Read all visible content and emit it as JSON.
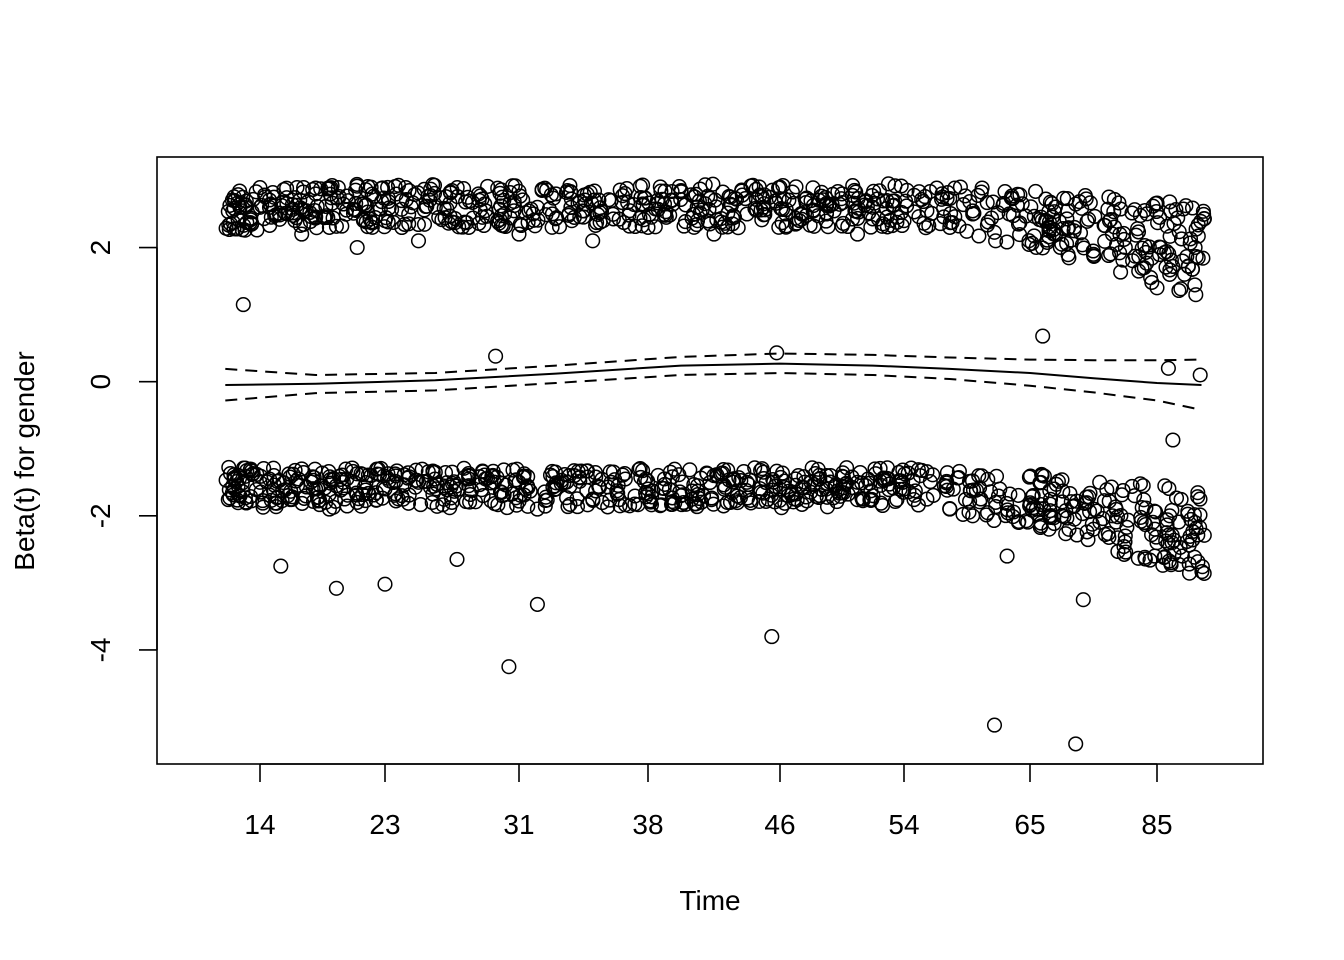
{
  "chart_data": {
    "type": "scatter",
    "title": "",
    "xlabel": "Time",
    "ylabel": "Beta(t) for gender",
    "x_scale": "transformed (tick labels show quantiles of time)",
    "x_ticks": [
      "14",
      "23",
      "31",
      "38",
      "46",
      "54",
      "65",
      "85"
    ],
    "y_ticks": [
      -4,
      -2,
      0,
      2
    ],
    "ylim": [
      -5.7,
      3.35
    ],
    "grid": false,
    "legend": "none",
    "series": [
      {
        "kind": "points",
        "marker": "open circle",
        "description_of_values": "scaled Schoenfeld residuals in two bands",
        "upper_band": [
          [
            14,
            2.6
          ],
          [
            15,
            2.75
          ],
          [
            16,
            2.5
          ],
          [
            17,
            2.2
          ],
          [
            18,
            2.8
          ],
          [
            19,
            2.3
          ],
          [
            20,
            2.65
          ],
          [
            21,
            2.0
          ],
          [
            22,
            2.9
          ],
          [
            23,
            2.4
          ],
          [
            24,
            2.7
          ],
          [
            25,
            2.1
          ],
          [
            26,
            2.6
          ],
          [
            27,
            2.85
          ],
          [
            28,
            2.3
          ],
          [
            29,
            2.55
          ],
          [
            30,
            2.75
          ],
          [
            31,
            2.2
          ],
          [
            32,
            2.6
          ],
          [
            33,
            2.8
          ],
          [
            34,
            2.45
          ],
          [
            35,
            2.1
          ],
          [
            36,
            2.7
          ],
          [
            37,
            2.55
          ],
          [
            38,
            2.3
          ],
          [
            39,
            2.65
          ],
          [
            40,
            2.85
          ],
          [
            41,
            2.4
          ],
          [
            42,
            2.2
          ],
          [
            43,
            2.75
          ],
          [
            44,
            2.5
          ],
          [
            45,
            2.6
          ],
          [
            46,
            2.9
          ],
          [
            47,
            2.35
          ],
          [
            48,
            2.7
          ],
          [
            49,
            2.5
          ],
          [
            50,
            2.8
          ],
          [
            51,
            2.2
          ],
          [
            52,
            2.6
          ],
          [
            53,
            2.95
          ],
          [
            54,
            2.4
          ],
          [
            56,
            2.55
          ],
          [
            58,
            2.3
          ],
          [
            60,
            2.5
          ],
          [
            62,
            2.1
          ],
          [
            64,
            2.35
          ],
          [
            66,
            2.0
          ],
          [
            68,
            2.25
          ],
          [
            70,
            2.05
          ],
          [
            72,
            2.3
          ],
          [
            75,
            1.9
          ],
          [
            78,
            2.2
          ],
          [
            80,
            2.0
          ],
          [
            83,
            1.7
          ],
          [
            85,
            1.4
          ],
          [
            87,
            1.6
          ],
          [
            89,
            1.8
          ],
          [
            91,
            2.0
          ]
        ],
        "lower_band": [
          [
            14,
            -1.5
          ],
          [
            15,
            -1.4
          ],
          [
            16,
            -1.7
          ],
          [
            17,
            -1.3
          ],
          [
            18,
            -1.6
          ],
          [
            19,
            -1.9
          ],
          [
            20,
            -1.5
          ],
          [
            21,
            -1.8
          ],
          [
            22,
            -1.4
          ],
          [
            23,
            -1.6
          ],
          [
            24,
            -1.7
          ],
          [
            25,
            -1.5
          ],
          [
            26,
            -1.35
          ],
          [
            27,
            -1.8
          ],
          [
            28,
            -1.55
          ],
          [
            29,
            -1.45
          ],
          [
            30,
            -1.7
          ],
          [
            31,
            -1.5
          ],
          [
            32,
            -1.9
          ],
          [
            33,
            -1.6
          ],
          [
            34,
            -1.4
          ],
          [
            35,
            -1.75
          ],
          [
            36,
            -1.5
          ],
          [
            37,
            -1.85
          ],
          [
            38,
            -1.6
          ],
          [
            39,
            -1.45
          ],
          [
            40,
            -1.7
          ],
          [
            41,
            -1.55
          ],
          [
            42,
            -1.4
          ],
          [
            43,
            -1.8
          ],
          [
            44,
            -1.5
          ],
          [
            45,
            -1.35
          ],
          [
            46,
            -1.6
          ],
          [
            47,
            -1.45
          ],
          [
            48,
            -1.5
          ],
          [
            49,
            -1.4
          ],
          [
            50,
            -1.65
          ],
          [
            51,
            -1.5
          ],
          [
            52,
            -1.7
          ],
          [
            53,
            -1.45
          ],
          [
            54,
            -1.6
          ],
          [
            56,
            -1.75
          ],
          [
            58,
            -1.9
          ],
          [
            60,
            -2.0
          ],
          [
            62,
            -1.8
          ],
          [
            64,
            -2.1
          ],
          [
            66,
            -1.9
          ],
          [
            68,
            -2.2
          ],
          [
            70,
            -2.0
          ],
          [
            72,
            -1.85
          ],
          [
            75,
            -2.2
          ],
          [
            78,
            -2.0
          ],
          [
            80,
            -2.3
          ],
          [
            83,
            -2.1
          ],
          [
            85,
            -2.4
          ],
          [
            87,
            -2.0
          ],
          [
            89,
            -2.6
          ],
          [
            91,
            -2.1
          ]
        ],
        "outliers": [
          [
            12.8,
            1.15
          ],
          [
            15.5,
            -2.75
          ],
          [
            19.5,
            -3.08
          ],
          [
            23.0,
            -3.02
          ],
          [
            27.3,
            -2.65
          ],
          [
            29.6,
            0.38
          ],
          [
            30.4,
            -4.25
          ],
          [
            32.0,
            -3.32
          ],
          [
            45.5,
            -3.8
          ],
          [
            45.8,
            0.43
          ],
          [
            61.9,
            -5.12
          ],
          [
            72.2,
            -5.4
          ],
          [
            73.4,
            -3.25
          ],
          [
            86.8,
            0.2
          ],
          [
            87.5,
            -0.87
          ],
          [
            91.8,
            0.1
          ],
          [
            63.0,
            -2.6
          ],
          [
            67.0,
            0.68
          ]
        ]
      },
      {
        "kind": "line",
        "style": "solid",
        "name": "",
        "values": [
          [
            11.5,
            -0.05
          ],
          [
            18,
            -0.03
          ],
          [
            26,
            0.02
          ],
          [
            33,
            0.12
          ],
          [
            40,
            0.24
          ],
          [
            46,
            0.27
          ],
          [
            52,
            0.24
          ],
          [
            58,
            0.19
          ],
          [
            65,
            0.13
          ],
          [
            75,
            0.05
          ],
          [
            85,
            -0.02
          ],
          [
            92,
            -0.05
          ]
        ]
      },
      {
        "kind": "line",
        "style": "dashed",
        "name": "",
        "values": [
          [
            11.5,
            0.19
          ],
          [
            18,
            0.1
          ],
          [
            26,
            0.13
          ],
          [
            33,
            0.24
          ],
          [
            40,
            0.37
          ],
          [
            46,
            0.42
          ],
          [
            52,
            0.4
          ],
          [
            58,
            0.36
          ],
          [
            65,
            0.33
          ],
          [
            75,
            0.32
          ],
          [
            85,
            0.32
          ],
          [
            92,
            0.33
          ]
        ]
      },
      {
        "kind": "line",
        "style": "dashed",
        "name": "",
        "values": [
          [
            11.5,
            -0.28
          ],
          [
            18,
            -0.17
          ],
          [
            26,
            -0.13
          ],
          [
            33,
            -0.02
          ],
          [
            40,
            0.1
          ],
          [
            46,
            0.13
          ],
          [
            52,
            0.1
          ],
          [
            58,
            0.04
          ],
          [
            65,
            -0.06
          ],
          [
            75,
            -0.16
          ],
          [
            85,
            -0.28
          ],
          [
            92,
            -0.42
          ]
        ]
      }
    ]
  }
}
